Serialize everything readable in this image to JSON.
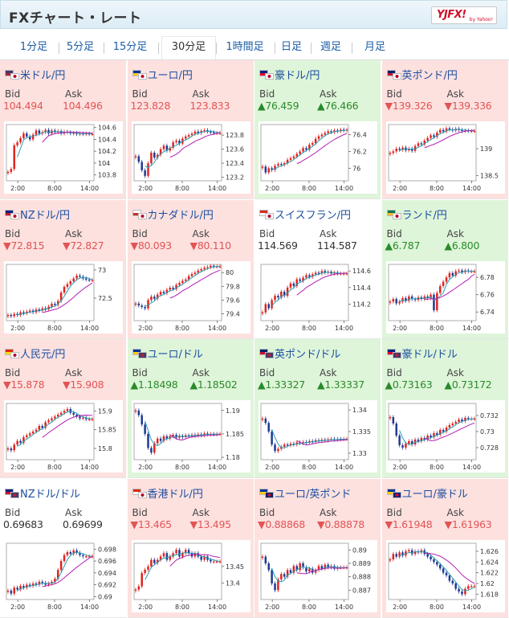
{
  "header": {
    "title": "FXチャート・レート",
    "logo": "YJFX!",
    "logo_sub": "by Yahoo!"
  },
  "tabs": [
    {
      "label": "1分足",
      "active": false
    },
    {
      "label": "5分足",
      "active": false
    },
    {
      "label": "15分足",
      "active": false
    },
    {
      "label": "30分足",
      "active": true
    },
    {
      "label": "1時間足",
      "active": false
    },
    {
      "label": "日足",
      "active": false
    },
    {
      "label": "週足",
      "active": false
    },
    {
      "label": "月足",
      "active": false
    }
  ],
  "labels": {
    "bid": "Bid",
    "ask": "Ask"
  },
  "colors": {
    "down_bg": "#fde1df",
    "up_bg": "#def5d9",
    "down_text": "#e25454",
    "up_text": "#2a8a2a",
    "candle_up": "#e0231f",
    "candle_down": "#1f3a93",
    "ma_short": "#2aa0b5",
    "ma_long": "#b41eb4"
  },
  "pairs": [
    {
      "name": "米ドル/円",
      "flags": [
        "us",
        "jp"
      ],
      "trend": "down",
      "bid": "104.494",
      "ask": "104.496",
      "chart_data": {
        "type": "candlestick",
        "ylim": [
          103.7,
          104.65
        ],
        "yticks": [
          "104.6",
          "104.4",
          "104.2",
          "104",
          "103.8"
        ],
        "xticks": [
          "2:00",
          "8:00",
          "14:00"
        ],
        "close": [
          103.85,
          103.9,
          104.3,
          104.35,
          104.42,
          104.5,
          104.45,
          104.4,
          104.48,
          104.55,
          104.5,
          104.52,
          104.56,
          104.5,
          104.55,
          104.52,
          104.54,
          104.5,
          104.53,
          104.52,
          104.5,
          104.51,
          104.49,
          104.5,
          104.49,
          104.5,
          104.49,
          104.49
        ]
      }
    },
    {
      "name": "ユーロ/円",
      "flags": [
        "eu",
        "jp"
      ],
      "trend": "down",
      "bid": "123.828",
      "ask": "123.833",
      "chart_data": {
        "type": "candlestick",
        "ylim": [
          123.15,
          123.95
        ],
        "yticks": [
          "123.8",
          "123.6",
          "123.4",
          "123.2"
        ],
        "xticks": [
          "2:00",
          "8:00",
          "14:00"
        ],
        "close": [
          123.5,
          123.42,
          123.3,
          123.22,
          123.4,
          123.55,
          123.48,
          123.52,
          123.6,
          123.65,
          123.58,
          123.62,
          123.7,
          123.72,
          123.68,
          123.75,
          123.78,
          123.8,
          123.82,
          123.85,
          123.83,
          123.86,
          123.87,
          123.85,
          123.84,
          123.83,
          123.83,
          123.83
        ]
      }
    },
    {
      "name": "豪ドル/円",
      "flags": [
        "au",
        "jp"
      ],
      "trend": "up",
      "bid": "▲76.459",
      "ask": "▲76.466",
      "chart_data": {
        "type": "candlestick",
        "ylim": [
          75.85,
          76.52
        ],
        "yticks": [
          "76.4",
          "76.2",
          "76"
        ],
        "xticks": [
          "2:00",
          "8:00",
          "14:00"
        ],
        "close": [
          76.02,
          75.95,
          76.0,
          75.98,
          76.03,
          76.05,
          76.04,
          76.06,
          76.1,
          76.12,
          76.14,
          76.17,
          76.2,
          76.24,
          76.22,
          76.28,
          76.3,
          76.35,
          76.38,
          76.4,
          76.42,
          76.44,
          76.43,
          76.45,
          76.44,
          76.46,
          76.45,
          76.46
        ]
      }
    },
    {
      "name": "英ポンド/円",
      "flags": [
        "gb",
        "jp"
      ],
      "trend": "down",
      "bid": "▼139.326",
      "ask": "▼139.336",
      "chart_data": {
        "type": "candlestick",
        "ylim": [
          138.4,
          139.45
        ],
        "yticks": [
          "139",
          "138.5"
        ],
        "xticks": [
          "2:00",
          "8:00",
          "14:00"
        ],
        "close": [
          138.92,
          138.95,
          139.0,
          138.98,
          139.02,
          138.97,
          139.0,
          138.96,
          139.05,
          139.1,
          139.08,
          139.15,
          139.2,
          139.25,
          139.22,
          139.3,
          139.35,
          139.32,
          139.38,
          139.36,
          139.34,
          139.37,
          139.35,
          139.33,
          139.34,
          139.33,
          139.33,
          139.33
        ]
      }
    },
    {
      "name": "NZドル/円",
      "flags": [
        "nz",
        "jp"
      ],
      "trend": "down",
      "bid": "▼72.815",
      "ask": "▼72.827",
      "chart_data": {
        "type": "candlestick",
        "ylim": [
          72.1,
          73.1
        ],
        "yticks": [
          "73",
          "72.5"
        ],
        "xticks": [
          "2:00",
          "8:00",
          "14:00"
        ],
        "close": [
          72.2,
          72.18,
          72.22,
          72.2,
          72.25,
          72.23,
          72.26,
          72.28,
          72.25,
          72.3,
          72.28,
          72.32,
          72.3,
          72.35,
          72.4,
          72.38,
          72.45,
          72.6,
          72.7,
          72.75,
          72.8,
          72.85,
          72.9,
          72.88,
          72.85,
          72.83,
          72.82,
          72.82
        ]
      }
    },
    {
      "name": "カナダドル/円",
      "flags": [
        "ca",
        "jp"
      ],
      "trend": "down",
      "bid": "▼80.093",
      "ask": "▼80.110",
      "chart_data": {
        "type": "candlestick",
        "ylim": [
          79.3,
          80.12
        ],
        "yticks": [
          "80",
          "79.8",
          "79.6",
          "79.4"
        ],
        "xticks": [
          "2:00",
          "8:00",
          "14:00"
        ],
        "close": [
          79.55,
          79.52,
          79.5,
          79.48,
          79.6,
          79.65,
          79.62,
          79.68,
          79.72,
          79.7,
          79.75,
          79.78,
          79.76,
          79.82,
          79.85,
          79.88,
          79.9,
          79.95,
          79.98,
          80.0,
          80.03,
          80.05,
          80.07,
          80.08,
          80.1,
          80.09,
          80.09,
          80.09
        ]
      }
    },
    {
      "name": "スイスフラン/円",
      "flags": [
        "ch",
        "jp"
      ],
      "trend": "flat",
      "bid": "114.569",
      "ask": "114.587",
      "chart_data": {
        "type": "candlestick",
        "ylim": [
          114.0,
          114.68
        ],
        "yticks": [
          "114.6",
          "114.4",
          "114.2"
        ],
        "xticks": [
          "2:00",
          "8:00",
          "14:00"
        ],
        "close": [
          114.1,
          114.2,
          114.15,
          114.25,
          114.3,
          114.28,
          114.35,
          114.3,
          114.4,
          114.45,
          114.42,
          114.5,
          114.48,
          114.52,
          114.55,
          114.53,
          114.56,
          114.58,
          114.57,
          114.6,
          114.58,
          114.59,
          114.57,
          114.58,
          114.57,
          114.57,
          114.57,
          114.57
        ]
      }
    },
    {
      "name": "ランド/円",
      "flags": [
        "za",
        "jp"
      ],
      "trend": "up",
      "bid": "▲6.787",
      "ask": "▲6.800",
      "chart_data": {
        "type": "candlestick",
        "ylim": [
          6.73,
          6.795
        ],
        "yticks": [
          "6.78",
          "6.76",
          "6.74"
        ],
        "xticks": [
          "2:00",
          "8:00",
          "14:00"
        ],
        "close": [
          6.752,
          6.755,
          6.75,
          6.752,
          6.756,
          6.753,
          6.758,
          6.755,
          6.754,
          6.757,
          6.755,
          6.758,
          6.756,
          6.76,
          6.742,
          6.762,
          6.77,
          6.775,
          6.78,
          6.785,
          6.782,
          6.787,
          6.788,
          6.786,
          6.788,
          6.787,
          6.787,
          6.787
        ]
      }
    },
    {
      "name": "人民元/円",
      "flags": [
        "cn",
        "jp"
      ],
      "trend": "down",
      "bid": "▼15.878",
      "ask": "▼15.908",
      "chart_data": {
        "type": "candlestick",
        "ylim": [
          15.77,
          15.92
        ],
        "yticks": [
          "15.9",
          "15.85",
          "15.8"
        ],
        "xticks": [
          "2:00",
          "8:00",
          "14:00"
        ],
        "close": [
          15.8,
          15.795,
          15.81,
          15.82,
          15.815,
          15.83,
          15.835,
          15.84,
          15.845,
          15.85,
          15.86,
          15.855,
          15.87,
          15.875,
          15.88,
          15.885,
          15.89,
          15.895,
          15.9,
          15.905,
          15.895,
          15.89,
          15.885,
          15.88,
          15.882,
          15.878,
          15.878,
          15.878
        ]
      }
    },
    {
      "name": "ユーロ/ドル",
      "flags": [
        "eu",
        "us"
      ],
      "trend": "up",
      "bid": "▲1.18498",
      "ask": "▲1.18502",
      "chart_data": {
        "type": "candlestick",
        "ylim": [
          1.1795,
          1.1915
        ],
        "yticks": [
          "1.19",
          "1.185",
          "1.18"
        ],
        "xticks": [
          "2:00",
          "8:00",
          "14:00"
        ],
        "close": [
          1.19,
          1.189,
          1.187,
          1.185,
          1.182,
          1.181,
          1.183,
          1.184,
          1.1835,
          1.1845,
          1.184,
          1.1845,
          1.1848,
          1.1842,
          1.1846,
          1.1843,
          1.1847,
          1.1845,
          1.1848,
          1.1846,
          1.1849,
          1.1847,
          1.1851,
          1.1849,
          1.185,
          1.1849,
          1.185,
          1.185
        ]
      }
    },
    {
      "name": "英ポンド/ドル",
      "flags": [
        "gb",
        "us"
      ],
      "trend": "up",
      "bid": "▲1.33327",
      "ask": "▲1.33337",
      "chart_data": {
        "type": "candlestick",
        "ylim": [
          1.3285,
          1.3415
        ],
        "yticks": [
          "1.34",
          "1.335",
          "1.33"
        ],
        "xticks": [
          "2:00",
          "8:00",
          "14:00"
        ],
        "close": [
          1.338,
          1.337,
          1.335,
          1.332,
          1.3305,
          1.331,
          1.3315,
          1.332,
          1.3318,
          1.3322,
          1.332,
          1.3325,
          1.3323,
          1.3326,
          1.3324,
          1.3328,
          1.3326,
          1.333,
          1.3328,
          1.3331,
          1.3329,
          1.3332,
          1.3333,
          1.3331,
          1.3333,
          1.3332,
          1.3333,
          1.3333
        ]
      }
    },
    {
      "name": "豪ドル/ドル",
      "flags": [
        "au",
        "us"
      ],
      "trend": "up",
      "bid": "▲0.73163",
      "ask": "▲0.73172",
      "chart_data": {
        "type": "candlestick",
        "ylim": [
          0.7265,
          0.7335
        ],
        "yticks": [
          "0.732",
          "0.73",
          "0.728"
        ],
        "xticks": [
          "2:00",
          "8:00",
          "14:00"
        ],
        "close": [
          0.7318,
          0.731,
          0.7295,
          0.7283,
          0.728,
          0.7285,
          0.7288,
          0.7284,
          0.729,
          0.7288,
          0.7292,
          0.729,
          0.7295,
          0.7293,
          0.7298,
          0.7296,
          0.7302,
          0.73,
          0.7305,
          0.7308,
          0.731,
          0.7312,
          0.7315,
          0.7313,
          0.7317,
          0.7316,
          0.7316,
          0.7316
        ]
      }
    },
    {
      "name": "NZドル/ドル",
      "flags": [
        "nz",
        "us"
      ],
      "trend": "flat",
      "bid": "0.69683",
      "ask": "0.69699",
      "chart_data": {
        "type": "candlestick",
        "ylim": [
          0.6895,
          0.699
        ],
        "yticks": [
          "0.698",
          "0.696",
          "0.694",
          "0.692",
          "0.69"
        ],
        "xticks": [
          "2:00",
          "8:00",
          "14:00"
        ],
        "close": [
          0.691,
          0.6905,
          0.6915,
          0.6912,
          0.6918,
          0.6915,
          0.692,
          0.6918,
          0.6922,
          0.692,
          0.6925,
          0.6923,
          0.692,
          0.6922,
          0.6925,
          0.693,
          0.6945,
          0.696,
          0.697,
          0.6975,
          0.6972,
          0.6978,
          0.6974,
          0.697,
          0.6968,
          0.6968,
          0.6968,
          0.6968
        ]
      }
    },
    {
      "name": "香港ドル/円",
      "flags": [
        "hk",
        "jp"
      ],
      "trend": "down",
      "bid": "▼13.465",
      "ask": "▼13.495",
      "chart_data": {
        "type": "candlestick",
        "ylim": [
          13.35,
          13.52
        ],
        "yticks": [
          "13.45",
          "13.4"
        ],
        "xticks": [
          "2:00",
          "8:00",
          "14:00"
        ],
        "close": [
          13.38,
          13.39,
          13.43,
          13.44,
          13.45,
          13.47,
          13.46,
          13.47,
          13.48,
          13.49,
          13.47,
          13.48,
          13.49,
          13.5,
          13.48,
          13.49,
          13.5,
          13.49,
          13.48,
          13.49,
          13.48,
          13.47,
          13.48,
          13.47,
          13.465,
          13.465,
          13.465,
          13.465
        ]
      }
    },
    {
      "name": "ユーロ/英ポンド",
      "flags": [
        "eu",
        "gb"
      ],
      "trend": "down",
      "bid": "▼0.88868",
      "ask": "▼0.88878",
      "chart_data": {
        "type": "candlestick",
        "ylim": [
          0.8863,
          0.8905
        ],
        "yticks": [
          "0.89",
          "0.889",
          "0.888",
          "0.887"
        ],
        "xticks": [
          "2:00",
          "8:00",
          "14:00"
        ],
        "close": [
          0.8895,
          0.889,
          0.8885,
          0.8875,
          0.887,
          0.8878,
          0.8882,
          0.888,
          0.8885,
          0.8883,
          0.8888,
          0.8885,
          0.889,
          0.8887,
          0.8884,
          0.8886,
          0.8883,
          0.8885,
          0.8888,
          0.8886,
          0.8889,
          0.8887,
          0.8888,
          0.8886,
          0.8887,
          0.8887,
          0.8887,
          0.8887
        ]
      }
    },
    {
      "name": "ユーロ/豪ドル",
      "flags": [
        "eu",
        "au"
      ],
      "trend": "down",
      "bid": "▼1.61948",
      "ask": "▼1.61963",
      "chart_data": {
        "type": "candlestick",
        "ylim": [
          1.617,
          1.6275
        ],
        "yticks": [
          "1.626",
          "1.624",
          "1.622",
          "1.62",
          "1.618"
        ],
        "xticks": [
          "2:00",
          "8:00",
          "14:00"
        ],
        "close": [
          1.6245,
          1.6255,
          1.625,
          1.6258,
          1.6252,
          1.626,
          1.6262,
          1.6255,
          1.626,
          1.6258,
          1.6262,
          1.6255,
          1.625,
          1.6245,
          1.624,
          1.6235,
          1.6228,
          1.622,
          1.6215,
          1.6205,
          1.62,
          1.619,
          1.6185,
          1.618,
          1.619,
          1.6195,
          1.6195,
          1.6195
        ]
      }
    }
  ]
}
